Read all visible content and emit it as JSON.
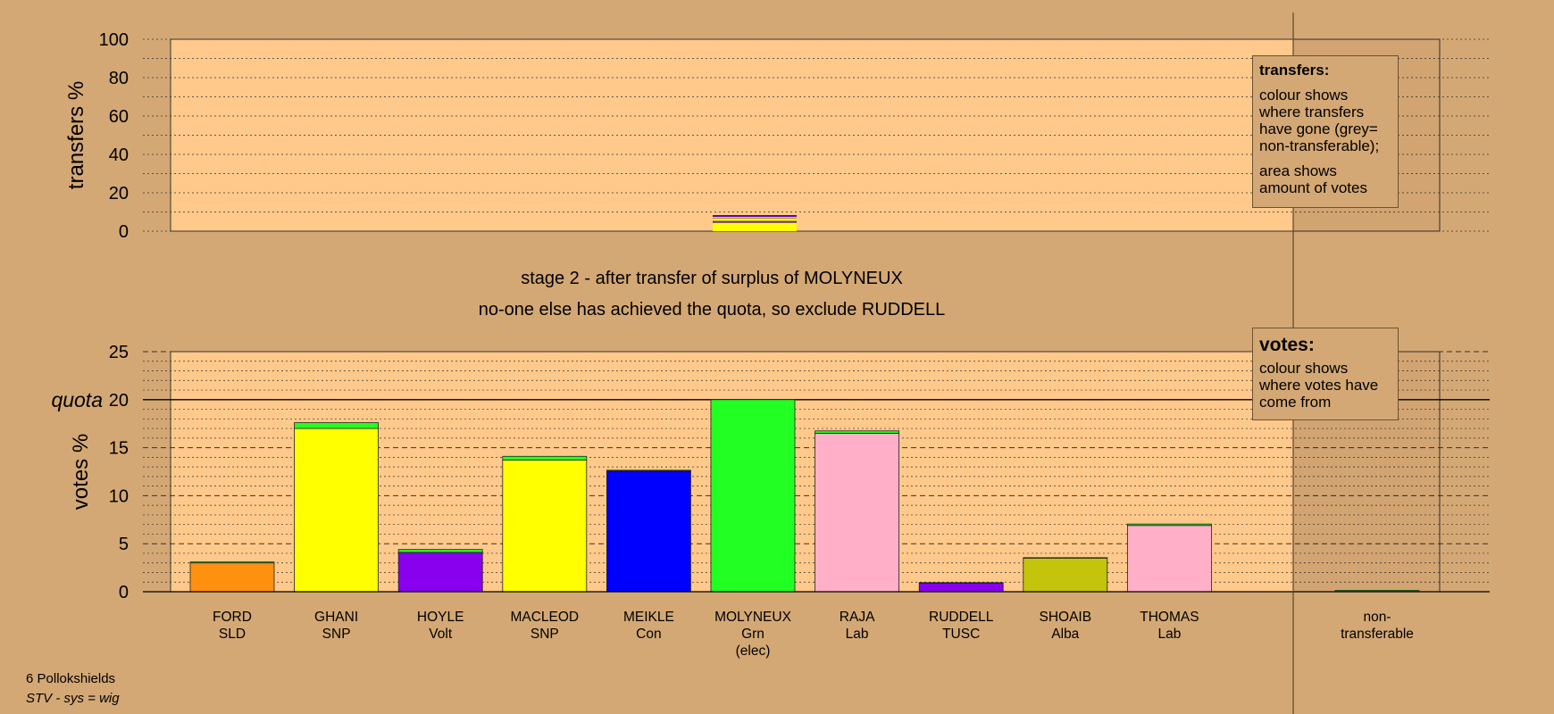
{
  "stage_title": "stage 2 - after transfer of surplus of MOLYNEUX",
  "stage_subtitle": "no-one else has achieved the quota, so exclude RUDDELL",
  "legend_transfers": {
    "heading": "transfers:",
    "text1": "colour shows where transfers have gone (grey= non-transferable);",
    "text2": "area shows amount of votes"
  },
  "legend_votes": {
    "heading": "votes:",
    "text1": "colour shows where votes have come from"
  },
  "footer": {
    "ward": "6 Pollokshields",
    "system": "STV - sys = wig"
  },
  "chart_data": [
    {
      "type": "bar",
      "name": "transfers",
      "ylabel": "transfers %",
      "ylim": [
        0,
        100
      ],
      "yticks": [
        0,
        20,
        40,
        60,
        80,
        100
      ],
      "grid": true,
      "bars": [
        {
          "candidate": "MOLYNEUX",
          "segments": [
            {
              "color": "#FFFF00",
              "value": 4.5
            },
            {
              "color": "#8800FF",
              "value": 0.8
            },
            {
              "color": "#FFFF00",
              "value": 1.5
            },
            {
              "color": "#FFAAC0",
              "value": 0.8
            },
            {
              "color": "#8800FF",
              "value": 0.6
            }
          ]
        }
      ]
    },
    {
      "type": "bar",
      "name": "votes",
      "ylabel": "votes %",
      "ylim": [
        0,
        25
      ],
      "yticks": [
        0,
        5,
        10,
        15,
        20,
        25
      ],
      "quota": 20,
      "quota_label": "quota",
      "grid": true,
      "categories": [
        {
          "name": "FORD",
          "party": "SLD",
          "extra": ""
        },
        {
          "name": "GHANI",
          "party": "SNP",
          "extra": ""
        },
        {
          "name": "HOYLE",
          "party": "Volt",
          "extra": ""
        },
        {
          "name": "MACLEOD",
          "party": "SNP",
          "extra": ""
        },
        {
          "name": "MEIKLE",
          "party": "Con",
          "extra": ""
        },
        {
          "name": "MOLYNEUX",
          "party": "Grn",
          "extra": "(elec)"
        },
        {
          "name": "RAJA",
          "party": "Lab",
          "extra": ""
        },
        {
          "name": "RUDDELL",
          "party": "TUSC",
          "extra": ""
        },
        {
          "name": "SHOAIB",
          "party": "Alba",
          "extra": ""
        },
        {
          "name": "THOMAS",
          "party": "Lab",
          "extra": ""
        }
      ],
      "nontransferable_label": [
        "non-",
        "transferable"
      ],
      "nontransferable_value": 0.15,
      "series": [
        {
          "source": "first preferences",
          "values": [
            3.0,
            17.0,
            4.1,
            13.7,
            12.6,
            20.0,
            16.5,
            0.9,
            3.5,
            6.9
          ],
          "colors": [
            "#FF9010",
            "#FFFF00",
            "#8800EE",
            "#FFFF00",
            "#0000FF",
            "#22FF22",
            "#FFB0C8",
            "#8800EE",
            "#C4C40C",
            "#FFB0C8"
          ]
        },
        {
          "source": "transfer from MOLYNEUX",
          "values": [
            0.1,
            0.6,
            0.3,
            0.4,
            0.05,
            0,
            0.25,
            0.05,
            0.05,
            0.15
          ],
          "color": "#22FF22"
        }
      ]
    }
  ]
}
